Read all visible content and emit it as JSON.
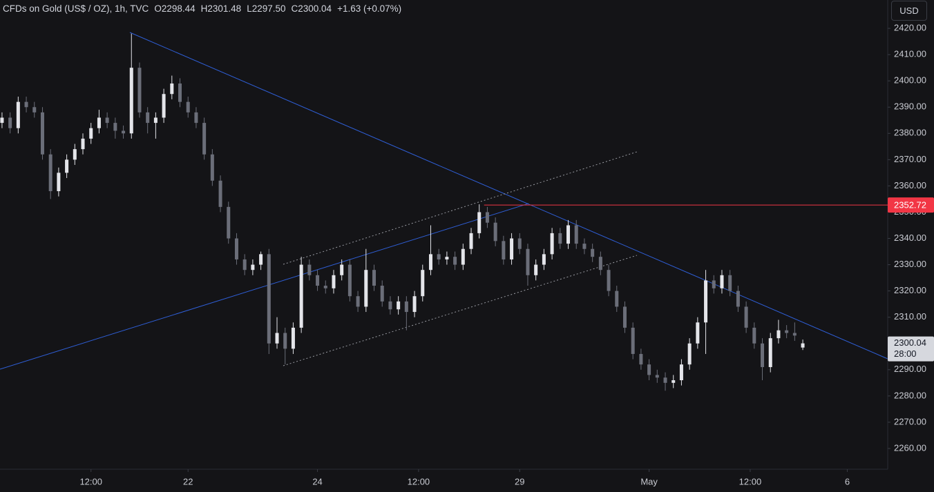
{
  "chart_data": {
    "type": "candlestick",
    "legend": {
      "title": "CFDs on Gold (US$ / OZ), 1h, TVC",
      "open": "O2298.44",
      "high": "H2301.48",
      "low": "L2297.50",
      "close": "C2300.04",
      "change": "+1.63 (+0.07%)"
    },
    "currency": "USD",
    "up_color": "#e4e5ea",
    "down_color": "#6b6e79",
    "candles": [
      [
        2384,
        2388,
        2382,
        2386
      ],
      [
        2386,
        2388,
        2380,
        2382
      ],
      [
        2382,
        2394,
        2380,
        2392
      ],
      [
        2392,
        2394,
        2388,
        2390
      ],
      [
        2390,
        2392,
        2386,
        2388
      ],
      [
        2388,
        2390,
        2370,
        2372
      ],
      [
        2372,
        2374,
        2355,
        2358
      ],
      [
        2358,
        2367,
        2356,
        2365
      ],
      [
        2365,
        2372,
        2363,
        2370
      ],
      [
        2370,
        2376,
        2368,
        2374
      ],
      [
        2374,
        2380,
        2372,
        2378
      ],
      [
        2378,
        2384,
        2376,
        2382
      ],
      [
        2382,
        2389,
        2380,
        2386
      ],
      [
        2386,
        2388,
        2382,
        2384
      ],
      [
        2384,
        2386,
        2378,
        2381
      ],
      [
        2381,
        2383,
        2378,
        2380
      ],
      [
        2380,
        2418,
        2378,
        2405
      ],
      [
        2405,
        2407,
        2386,
        2388
      ],
      [
        2388,
        2390,
        2380,
        2384
      ],
      [
        2384,
        2388,
        2378,
        2386
      ],
      [
        2386,
        2397,
        2384,
        2395
      ],
      [
        2395,
        2402,
        2393,
        2399
      ],
      [
        2399,
        2401,
        2390,
        2392
      ],
      [
        2392,
        2394,
        2386,
        2388
      ],
      [
        2388,
        2390,
        2382,
        2384
      ],
      [
        2384,
        2386,
        2370,
        2372
      ],
      [
        2372,
        2374,
        2360,
        2362
      ],
      [
        2362,
        2364,
        2350,
        2352
      ],
      [
        2352,
        2354,
        2338,
        2340
      ],
      [
        2340,
        2342,
        2330,
        2332
      ],
      [
        2332,
        2334,
        2326,
        2328
      ],
      [
        2328,
        2332,
        2326,
        2330
      ],
      [
        2330,
        2335,
        2328,
        2334
      ],
      [
        2334,
        2336,
        2296,
        2300
      ],
      [
        2300,
        2310,
        2298,
        2304
      ],
      [
        2304,
        2306,
        2292,
        2298
      ],
      [
        2298,
        2308,
        2296,
        2306
      ],
      [
        2306,
        2333,
        2304,
        2330
      ],
      [
        2330,
        2332,
        2324,
        2326
      ],
      [
        2326,
        2328,
        2320,
        2322
      ],
      [
        2322,
        2324,
        2319,
        2321
      ],
      [
        2321,
        2328,
        2319,
        2326
      ],
      [
        2326,
        2332,
        2324,
        2330
      ],
      [
        2330,
        2332,
        2316,
        2318
      ],
      [
        2318,
        2320,
        2312,
        2314
      ],
      [
        2314,
        2336,
        2312,
        2328
      ],
      [
        2328,
        2330,
        2320,
        2322
      ],
      [
        2322,
        2324,
        2314,
        2316
      ],
      [
        2316,
        2318,
        2311,
        2313
      ],
      [
        2313,
        2318,
        2311,
        2316
      ],
      [
        2316,
        2318,
        2305,
        2312
      ],
      [
        2312,
        2320,
        2310,
        2318
      ],
      [
        2318,
        2330,
        2316,
        2328
      ],
      [
        2328,
        2345,
        2326,
        2334
      ],
      [
        2334,
        2336,
        2330,
        2332
      ],
      [
        2332,
        2335,
        2330,
        2333
      ],
      [
        2333,
        2335,
        2328,
        2330
      ],
      [
        2330,
        2338,
        2328,
        2336
      ],
      [
        2336,
        2344,
        2334,
        2342
      ],
      [
        2342,
        2353,
        2340,
        2350
      ],
      [
        2350,
        2352,
        2344,
        2346
      ],
      [
        2346,
        2348,
        2337,
        2339
      ],
      [
        2339,
        2341,
        2330,
        2332
      ],
      [
        2332,
        2342,
        2330,
        2340
      ],
      [
        2340,
        2342,
        2334,
        2336
      ],
      [
        2336,
        2338,
        2322,
        2326
      ],
      [
        2326,
        2332,
        2324,
        2330
      ],
      [
        2330,
        2336,
        2328,
        2334
      ],
      [
        2334,
        2344,
        2332,
        2342
      ],
      [
        2342,
        2344,
        2336,
        2338
      ],
      [
        2338,
        2347,
        2336,
        2345
      ],
      [
        2345,
        2347,
        2336,
        2338
      ],
      [
        2338,
        2340,
        2334,
        2336
      ],
      [
        2336,
        2338,
        2331,
        2333
      ],
      [
        2333,
        2335,
        2326,
        2328
      ],
      [
        2328,
        2330,
        2318,
        2320
      ],
      [
        2320,
        2322,
        2312,
        2314
      ],
      [
        2314,
        2316,
        2304,
        2306
      ],
      [
        2306,
        2308,
        2294,
        2296
      ],
      [
        2296,
        2298,
        2290,
        2292
      ],
      [
        2292,
        2294,
        2286,
        2288
      ],
      [
        2288,
        2290,
        2285,
        2287
      ],
      [
        2287,
        2289,
        2282,
        2285
      ],
      [
        2285,
        2288,
        2283,
        2286
      ],
      [
        2286,
        2294,
        2284,
        2292
      ],
      [
        2292,
        2302,
        2290,
        2300
      ],
      [
        2300,
        2310,
        2298,
        2308
      ],
      [
        2308,
        2328,
        2296,
        2324
      ],
      [
        2324,
        2326,
        2319,
        2321
      ],
      [
        2321,
        2328,
        2319,
        2326
      ],
      [
        2326,
        2328,
        2318,
        2320
      ],
      [
        2320,
        2322,
        2312,
        2314
      ],
      [
        2314,
        2316,
        2304,
        2306
      ],
      [
        2306,
        2308,
        2298,
        2300
      ],
      [
        2300,
        2302,
        2286,
        2291
      ],
      [
        2291,
        2304,
        2289,
        2302
      ],
      [
        2302,
        2309,
        2300,
        2305
      ],
      [
        2305,
        2307,
        2302,
        2304
      ],
      [
        2304,
        2308,
        2301,
        2303
      ],
      [
        2298.44,
        2301.48,
        2297.5,
        2300.04
      ]
    ],
    "countdown": "28:00",
    "level": {
      "value": 2352.72,
      "color": "#f23645"
    },
    "xlim": [
      -0.25,
      109.5
    ],
    "xticks": [
      {
        "value": 11,
        "label": "12:00"
      },
      {
        "value": 23,
        "label": "22"
      },
      {
        "value": 39,
        "label": "24"
      },
      {
        "value": 51.5,
        "label": "12:00"
      },
      {
        "value": 64,
        "label": "29"
      },
      {
        "value": 80,
        "label": "May"
      },
      {
        "value": 92.5,
        "label": "12:00"
      },
      {
        "value": 104.5,
        "label": "6"
      }
    ],
    "ylim": [
      2252.1,
      2430.8
    ],
    "yticks": [
      {
        "value": 2260,
        "label": "2260.00"
      },
      {
        "value": 2270,
        "label": "2270.00"
      },
      {
        "value": 2280,
        "label": "2280.00"
      },
      {
        "value": 2290,
        "label": "2290.00"
      },
      {
        "value": 2300,
        "label": "2300.00"
      },
      {
        "value": 2310,
        "label": "2310.00"
      },
      {
        "value": 2320,
        "label": "2320.00"
      },
      {
        "value": 2330,
        "label": "2330.00"
      },
      {
        "value": 2340,
        "label": "2340.00"
      },
      {
        "value": 2350,
        "label": "2350.00"
      },
      {
        "value": 2360,
        "label": "2360.00"
      },
      {
        "value": 2370,
        "label": "2370.00"
      },
      {
        "value": 2380,
        "label": "2380.00"
      },
      {
        "value": 2390,
        "label": "2390.00"
      },
      {
        "value": 2400,
        "label": "2400.00"
      },
      {
        "value": 2410,
        "label": "2410.00"
      },
      {
        "value": 2420,
        "label": "2420.00"
      }
    ]
  }
}
